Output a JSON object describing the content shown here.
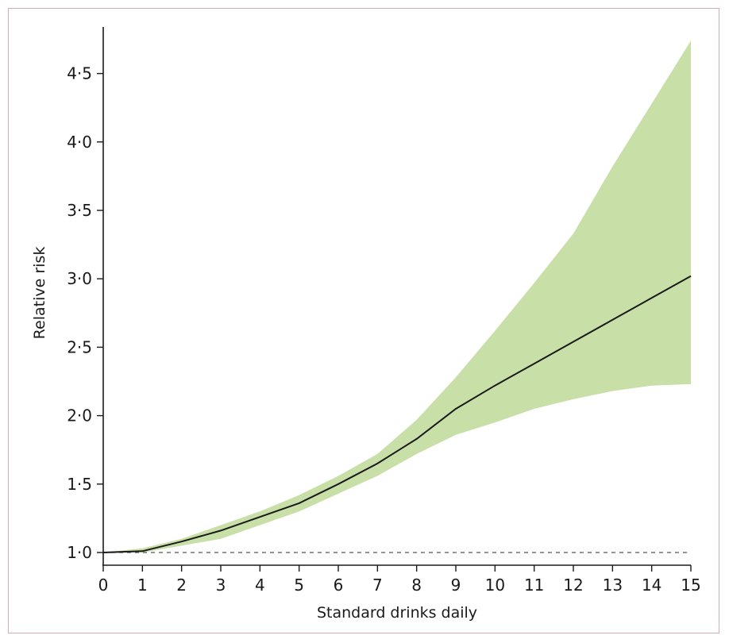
{
  "chart_data": {
    "type": "line",
    "title": "",
    "xlabel": "Standard drinks daily",
    "ylabel": "Relative risk",
    "xlim": [
      0,
      15
    ],
    "ylim": [
      1.0,
      4.7
    ],
    "x_ticks": [
      0,
      1,
      2,
      3,
      4,
      5,
      6,
      7,
      8,
      9,
      10,
      11,
      12,
      13,
      14,
      15
    ],
    "x_tick_labels": [
      "0",
      "1",
      "2",
      "3",
      "4",
      "5",
      "6",
      "7",
      "8",
      "9",
      "10",
      "11",
      "12",
      "13",
      "14",
      "15"
    ],
    "y_ticks": [
      1.0,
      1.5,
      2.0,
      2.5,
      3.0,
      3.5,
      4.0,
      4.5
    ],
    "y_tick_labels": [
      "1·0",
      "1·5",
      "2·0",
      "2·5",
      "3·0",
      "3·5",
      "4·0",
      "4·5"
    ],
    "reference_line": {
      "y": 1.0,
      "style": "dashed"
    },
    "series": [
      {
        "x": [
          0,
          1,
          2,
          3,
          4,
          5,
          6,
          7,
          8,
          9,
          10,
          11,
          12,
          13,
          14,
          15
        ],
        "values": [
          1.0,
          1.01,
          1.08,
          1.16,
          1.26,
          1.36,
          1.5,
          1.65,
          1.83,
          2.05,
          2.22,
          2.38,
          2.54,
          2.7,
          2.86,
          3.02
        ],
        "color": "#1a1a1a"
      }
    ],
    "confidence_band": {
      "x": [
        0,
        1,
        2,
        3,
        4,
        5,
        6,
        7,
        8,
        9,
        10,
        11,
        12,
        13,
        14,
        15
      ],
      "lower": [
        1.0,
        1.0,
        1.05,
        1.1,
        1.2,
        1.3,
        1.43,
        1.56,
        1.72,
        1.86,
        1.95,
        2.05,
        2.12,
        2.18,
        2.22,
        2.23
      ],
      "upper": [
        1.0,
        1.03,
        1.1,
        1.2,
        1.3,
        1.42,
        1.56,
        1.72,
        1.97,
        2.28,
        2.62,
        2.97,
        3.33,
        3.82,
        4.28,
        4.74
      ],
      "color": "#c8dfa7"
    },
    "grid": false,
    "legend": "none"
  }
}
